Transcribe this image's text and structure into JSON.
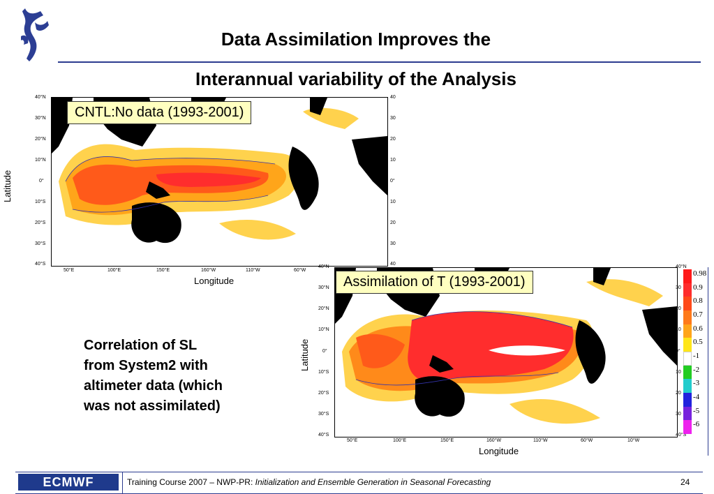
{
  "title": {
    "line1": "Data Assimilation Improves the",
    "line2": "Interannual variability of the Analysis"
  },
  "maps": [
    {
      "label": "CNTL:No data  (1993-2001)",
      "lat_ticks": [
        "40°N",
        "30°N",
        "20°N",
        "10°N",
        "0°",
        "10°S",
        "20°S",
        "30°S",
        "40°S"
      ],
      "lat_ticks_right": [
        "40",
        "30",
        "20",
        "10",
        "0°",
        "10",
        "20",
        "30",
        "40"
      ],
      "lon_ticks": [
        "50°E",
        "100°E",
        "150°E",
        "160°W",
        "110°W",
        "60°W"
      ],
      "xlabel": "Longitude",
      "ylabel": "Latitude"
    },
    {
      "label": "Assimilation of T (1993-2001)",
      "lat_ticks": [
        "40°N",
        "30°N",
        "20°N",
        "10°N",
        "0°",
        "10°S",
        "20°S",
        "30°S",
        "40°S"
      ],
      "lat_ticks_right": [
        "40°N",
        "30",
        "20",
        "10",
        "0°",
        "10",
        "20",
        "30",
        "40°S"
      ],
      "lon_ticks": [
        "50°E",
        "100°E",
        "150°E",
        "160°W",
        "110°W",
        "60°W",
        "10°W"
      ],
      "xlabel": "Longitude",
      "ylabel": "Latitude"
    }
  ],
  "colorbar": {
    "entries": [
      {
        "label": "0.98",
        "color": "#ff1a1a"
      },
      {
        "label": "0.9",
        "color": "#ff2d2d"
      },
      {
        "label": "0.8",
        "color": "#ff4a1a"
      },
      {
        "label": "0.7",
        "color": "#ff7a1a"
      },
      {
        "label": "0.6",
        "color": "#ffa51a"
      },
      {
        "label": "0.5",
        "color": "#ffe61a"
      },
      {
        "label": "-1",
        "color": "#ffffff"
      },
      {
        "label": "-2",
        "color": "#22cc22"
      },
      {
        "label": "-3",
        "color": "#22cccc"
      },
      {
        "label": "-4",
        "color": "#2222dd"
      },
      {
        "label": "-5",
        "color": "#7722dd"
      },
      {
        "label": "-6",
        "color": "#ee22ee"
      }
    ]
  },
  "correlation_text": [
    "Correlation of SL",
    "from System2 with",
    "altimeter data (which",
    "was not assimilated)"
  ],
  "footer": {
    "logo": "ECMWF",
    "course_prefix": "Training Course 2007 – NWP-PR: ",
    "course_title": "Initialization and Ensemble Generation  in Seasonal Forecasting",
    "page": "24"
  }
}
